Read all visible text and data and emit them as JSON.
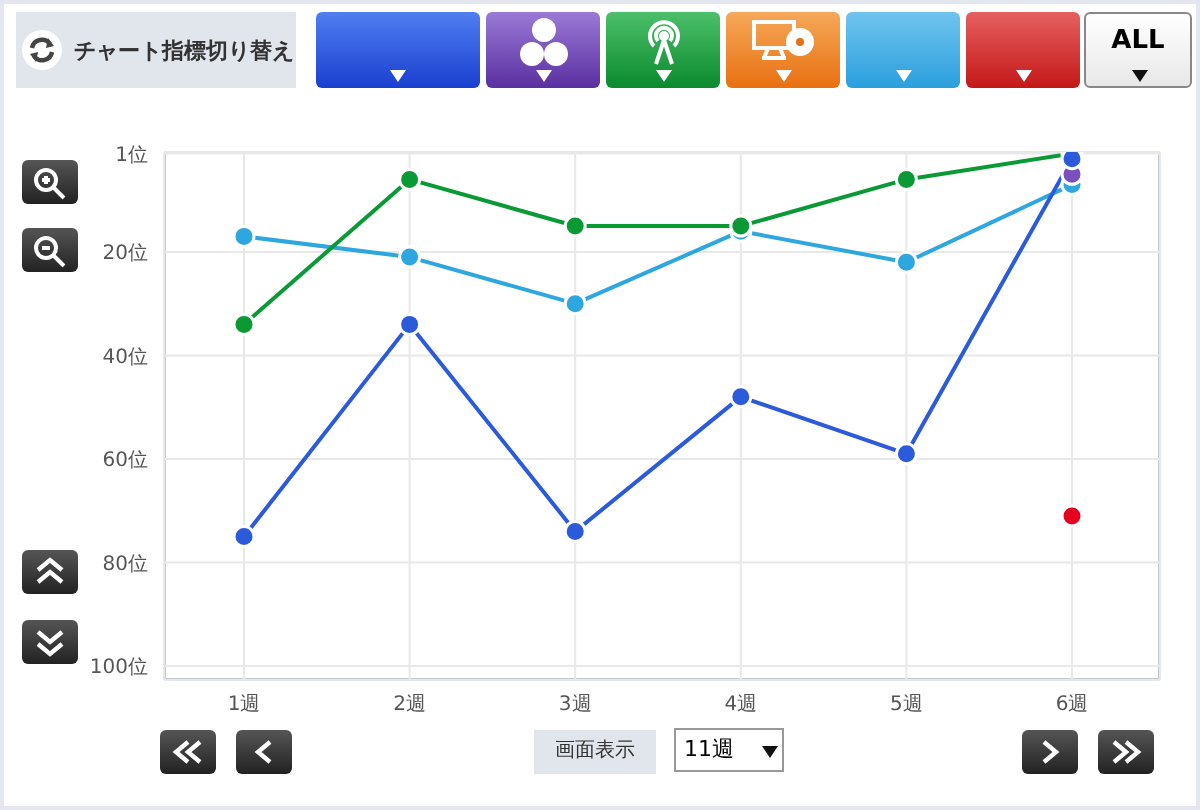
{
  "chart_data": {
    "type": "line",
    "categories": [
      "1週",
      "2週",
      "3週",
      "4週",
      "5週",
      "6週"
    ],
    "series": [
      {
        "color": "#2ea7e0",
        "values": [
          17,
          21,
          30,
          16,
          22,
          7
        ]
      },
      {
        "color": "#0a9a35",
        "values": [
          34,
          6,
          15,
          15,
          6,
          1
        ]
      },
      {
        "color": "#7b4fc0",
        "values": [
          null,
          null,
          null,
          null,
          null,
          5
        ]
      },
      {
        "color": "#e60020",
        "values": [
          null,
          null,
          null,
          null,
          null,
          71
        ]
      },
      {
        "color": "#2b5bdb",
        "values": [
          75,
          34,
          74,
          48,
          59,
          2
        ]
      }
    ],
    "ylim": [
      102.7,
      0.7
    ],
    "yticks": [
      {
        "value": 1,
        "label": "1位"
      },
      {
        "value": 20,
        "label": "20位"
      },
      {
        "value": 40,
        "label": "40位"
      },
      {
        "value": 60,
        "label": "60位"
      },
      {
        "value": 80,
        "label": "80位"
      },
      {
        "value": 100,
        "label": "100位"
      }
    ],
    "grid": true,
    "legend": false,
    "marker": "circle",
    "line_style": "solid",
    "annotations": [
      "チャート指標切り替え",
      "ALL",
      "画面表示",
      "11週"
    ]
  }
}
